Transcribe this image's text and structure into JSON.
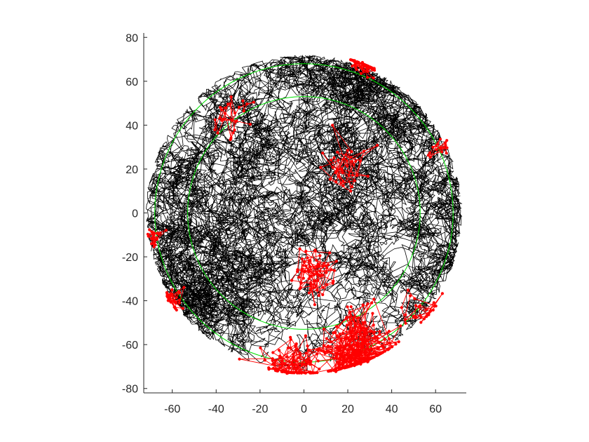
{
  "chart_data": {
    "type": "line",
    "title": "",
    "xlabel": "",
    "ylabel": "",
    "xlim": [
      -73,
      74
    ],
    "ylim": [
      -82,
      82
    ],
    "xticks": [
      -60,
      -40,
      -20,
      0,
      20,
      40,
      60
    ],
    "yticks": [
      80,
      60,
      40,
      20,
      0,
      -20,
      -40,
      -60,
      -80
    ],
    "xtick_labels": [
      "-60",
      "-40",
      "-20",
      "0",
      "20",
      "40",
      "60"
    ],
    "ytick_labels": [
      "80",
      "60",
      "40",
      "20",
      "0",
      "-20",
      "-40",
      "-60",
      "-80"
    ],
    "grid": false,
    "legend": "none",
    "axes_box": "left-bottom",
    "aspect": "equal",
    "series": [
      {
        "kind": "trajectory-line",
        "color": "#000000",
        "description_values": {
          "arena_radius": 72,
          "center": [
            0,
            0
          ]
        }
      },
      {
        "kind": "event-markers",
        "color": "#ff0000",
        "clusters": [
          {
            "center": [
              25,
              -65
            ],
            "spread": 12,
            "count": 260
          },
          {
            "center": [
              -5,
              -70
            ],
            "spread": 8,
            "count": 90
          },
          {
            "center": [
              28,
              70
            ],
            "spread": 4,
            "count": 60
          },
          {
            "center": [
              5,
              -28
            ],
            "spread": 7,
            "count": 70
          },
          {
            "center": [
              -62,
              -40
            ],
            "spread": 4,
            "count": 30
          },
          {
            "center": [
              -68,
              -10
            ],
            "spread": 3,
            "count": 22
          },
          {
            "center": [
              20,
              20
            ],
            "spread": 8,
            "count": 40
          },
          {
            "center": [
              -35,
              45
            ],
            "spread": 8,
            "count": 28
          },
          {
            "center": [
              55,
              -45
            ],
            "spread": 6,
            "count": 30
          },
          {
            "center": [
              62,
              30
            ],
            "spread": 4,
            "count": 18
          }
        ]
      }
    ],
    "circles": [
      {
        "center": [
          0,
          0
        ],
        "radius": 68,
        "color": "#00e000"
      },
      {
        "center": [
          0,
          0
        ],
        "radius": 53,
        "color": "#00e000"
      }
    ]
  }
}
